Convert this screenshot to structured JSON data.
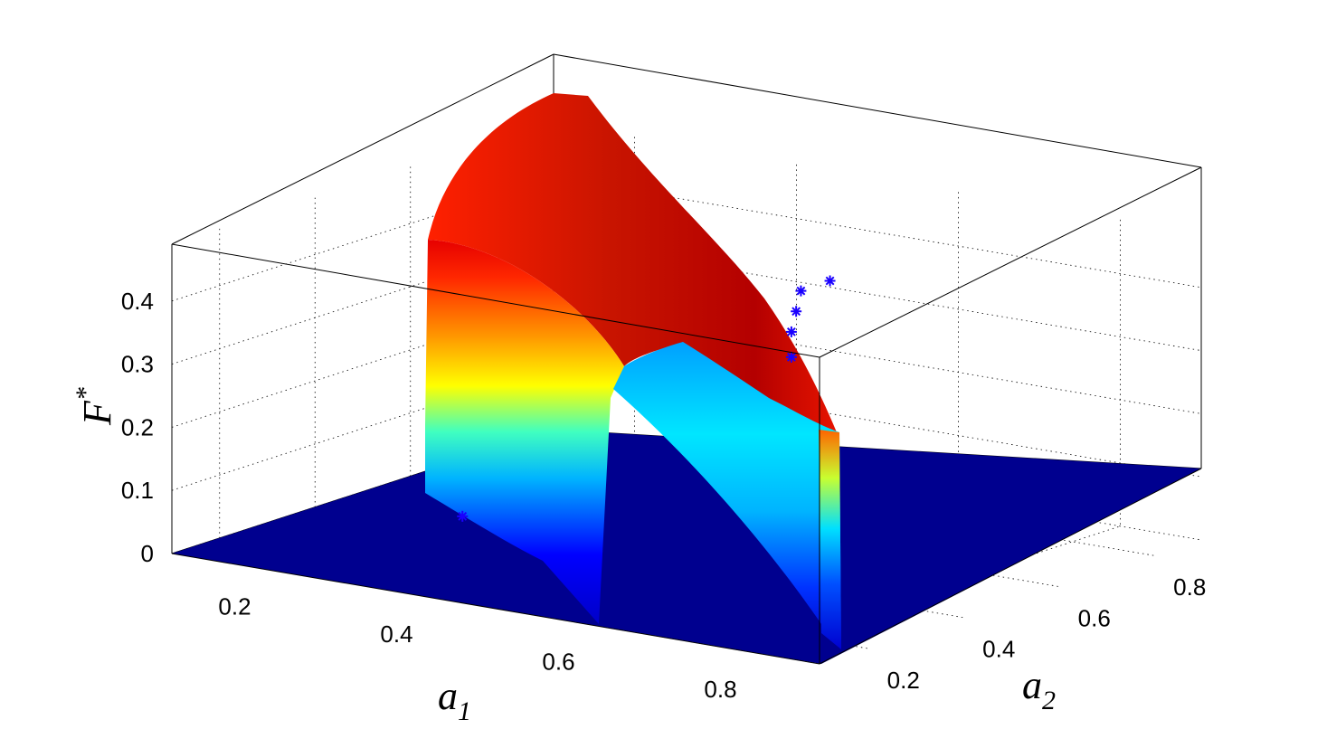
{
  "chart_data": {
    "type": "surface3d",
    "xlabel": {
      "base": "a",
      "sub": "1"
    },
    "ylabel": {
      "base": "a",
      "sub": "2"
    },
    "zlabel": {
      "base": "F",
      "sup": "*"
    },
    "xticks": [
      "0.2",
      "0.4",
      "0.6",
      "0.8"
    ],
    "yticks": [
      "0.2",
      "0.4",
      "0.6",
      "0.8"
    ],
    "zticks": [
      "0",
      "0.1",
      "0.2",
      "0.3",
      "0.4"
    ],
    "xlim": [
      0.1,
      0.9
    ],
    "ylim": [
      0.1,
      0.9
    ],
    "zlim": [
      0,
      0.49
    ],
    "grid": true,
    "colormap": "jet",
    "colors": {
      "floor": "#00008f",
      "low": "#0000ff",
      "mid": "#00ffff",
      "high": "#ffff00",
      "peak": "#c80000",
      "markers": "#0000ff"
    },
    "surface": {
      "x": [
        0.1,
        0.2,
        0.3,
        0.4,
        0.5,
        0.6,
        0.7,
        0.8,
        0.9
      ],
      "y": [
        0.1,
        0.2,
        0.3,
        0.4,
        0.5,
        0.6,
        0.7,
        0.8,
        0.9
      ],
      "z": [
        [
          0,
          0,
          0,
          0,
          0,
          0,
          0,
          0,
          0
        ],
        [
          0,
          0,
          0,
          0,
          0,
          0,
          0,
          0,
          0
        ],
        [
          0,
          0,
          0,
          0,
          0,
          0,
          0,
          0,
          0
        ],
        [
          0,
          0,
          0,
          0,
          0,
          0,
          0,
          0,
          0
        ],
        [
          0,
          0,
          0,
          0,
          0,
          0,
          0,
          0,
          0
        ],
        [
          0,
          0,
          0.18,
          0.3,
          0.36,
          0.4,
          0.42,
          0.46,
          0.48
        ],
        [
          0,
          0,
          0.19,
          0.32,
          0.38,
          0.42,
          0.44,
          0.47,
          0.48
        ],
        [
          0,
          0,
          0.2,
          0.33,
          0.39,
          0.43,
          0.45,
          0.47,
          0.48
        ],
        [
          0,
          0,
          0.2,
          0.33,
          0.39,
          0.43,
          0.45,
          0.47,
          0.48
        ]
      ]
    },
    "markers": [
      {
        "x": 0.6,
        "y": 0.55,
        "z": 0.31
      },
      {
        "x": 0.6,
        "y": 0.55,
        "z": 0.35
      },
      {
        "x": 0.6,
        "y": 0.56,
        "z": 0.38
      },
      {
        "x": 0.6,
        "y": 0.57,
        "z": 0.41
      },
      {
        "x": 0.63,
        "y": 0.58,
        "z": 0.43
      },
      {
        "x": 0.4,
        "y": 0.2,
        "z": 0.1
      }
    ]
  }
}
